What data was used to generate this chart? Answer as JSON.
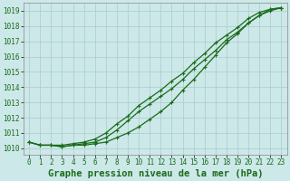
{
  "x": [
    0,
    1,
    2,
    3,
    4,
    5,
    6,
    7,
    8,
    9,
    10,
    11,
    12,
    13,
    14,
    15,
    16,
    17,
    18,
    19,
    20,
    21,
    22,
    23
  ],
  "line1": [
    1010.4,
    1010.2,
    1010.2,
    1010.1,
    1010.2,
    1010.2,
    1010.3,
    1010.4,
    1010.7,
    1011.0,
    1011.4,
    1011.9,
    1012.4,
    1013.0,
    1013.8,
    1014.5,
    1015.3,
    1016.1,
    1016.9,
    1017.5,
    1018.2,
    1018.7,
    1019.0,
    1019.2
  ],
  "line2": [
    1010.4,
    1010.2,
    1010.2,
    1010.1,
    1010.2,
    1010.3,
    1010.4,
    1010.7,
    1011.2,
    1011.8,
    1012.4,
    1012.9,
    1013.4,
    1013.9,
    1014.5,
    1015.2,
    1015.8,
    1016.4,
    1017.1,
    1017.6,
    1018.2,
    1018.7,
    1019.1,
    1019.2
  ],
  "line3": [
    1010.4,
    1010.2,
    1010.2,
    1010.2,
    1010.3,
    1010.4,
    1010.6,
    1011.0,
    1011.6,
    1012.1,
    1012.8,
    1013.3,
    1013.8,
    1014.4,
    1014.9,
    1015.6,
    1016.2,
    1016.9,
    1017.4,
    1017.9,
    1018.5,
    1018.9,
    1019.1,
    1019.2
  ],
  "ylim": [
    1009.6,
    1019.5
  ],
  "xlim": [
    -0.5,
    23.5
  ],
  "yticks": [
    1010,
    1011,
    1012,
    1013,
    1014,
    1015,
    1016,
    1017,
    1018,
    1019
  ],
  "xticks": [
    0,
    1,
    2,
    3,
    4,
    5,
    6,
    7,
    8,
    9,
    10,
    11,
    12,
    13,
    14,
    15,
    16,
    17,
    18,
    19,
    20,
    21,
    22,
    23
  ],
  "xlabel": "Graphe pression niveau de la mer (hPa)",
  "line_color": "#1a6b1a",
  "bg_color": "#cce8e8",
  "grid_color": "#aacccc",
  "tick_fontsize": 5.5,
  "xlabel_fontsize": 7.5
}
